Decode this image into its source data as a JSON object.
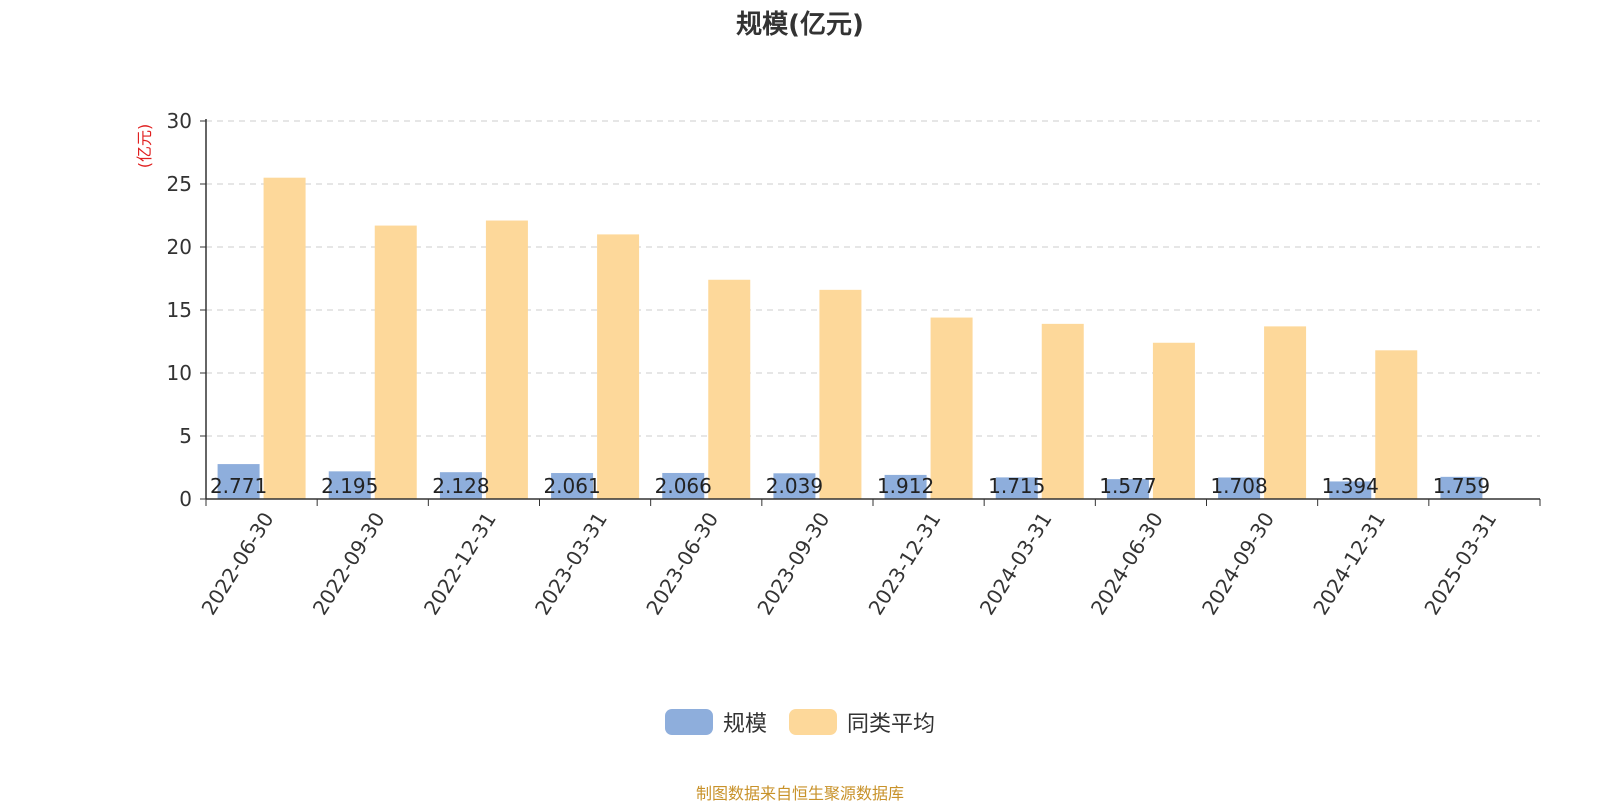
{
  "chart_data": {
    "type": "bar",
    "title": "规模(亿元)",
    "ylabel": "(亿元)",
    "xlabel": "",
    "ylim": [
      0,
      30
    ],
    "yticks": [
      0,
      5,
      10,
      15,
      20,
      25,
      30
    ],
    "grid": true,
    "legend_position": "bottom-center",
    "categories": [
      "2022-06-30",
      "2022-09-30",
      "2022-12-31",
      "2023-03-31",
      "2023-06-30",
      "2023-09-30",
      "2023-12-31",
      "2024-03-31",
      "2024-06-30",
      "2024-09-30",
      "2024-12-31",
      "2025-03-31"
    ],
    "series": [
      {
        "name": "规模",
        "color": "#8eaedc",
        "values": [
          2.771,
          2.195,
          2.128,
          2.061,
          2.066,
          2.039,
          1.912,
          1.715,
          1.577,
          1.708,
          1.394,
          1.759
        ],
        "labels": [
          "2.771",
          "2.195",
          "2.128",
          "2.061",
          "2.066",
          "2.039",
          "1.912",
          "1.715",
          "1.577",
          "1.708",
          "1.394",
          "1.759"
        ]
      },
      {
        "name": "同类平均",
        "color": "#fdd89a",
        "values": [
          25.5,
          21.7,
          22.1,
          21.0,
          17.4,
          16.6,
          14.4,
          13.9,
          12.4,
          13.7,
          11.8,
          null
        ]
      }
    ]
  },
  "footer": {
    "source_note": "制图数据来自恒生聚源数据库"
  }
}
